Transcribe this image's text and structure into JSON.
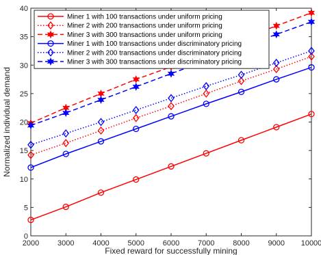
{
  "chart_data": {
    "type": "line",
    "title": "",
    "xlabel": "Fixed reward for successfully mining",
    "ylabel": "Normalized individual demand",
    "xlim": [
      2000,
      10000
    ],
    "ylim": [
      0,
      40
    ],
    "xticks": [
      2000,
      3000,
      4000,
      5000,
      6000,
      7000,
      8000,
      9000,
      10000
    ],
    "yticks": [
      0,
      5,
      10,
      15,
      20,
      25,
      30,
      35,
      40
    ],
    "grid": false,
    "legend_position": "top-left",
    "x": [
      2000,
      3000,
      4000,
      5000,
      6000,
      7000,
      8000,
      9000,
      10000
    ],
    "series": [
      {
        "name": "Miner 1 with 100 transactions under uniform pricing",
        "color": "#ff0000",
        "line_style": "solid",
        "marker": "circle",
        "values": [
          2.8,
          5.1,
          7.6,
          9.9,
          12.2,
          14.5,
          16.8,
          19.1,
          21.4
        ]
      },
      {
        "name": "Miner 2 with 200 transactions under uniform pricing",
        "color": "#ff0000",
        "line_style": "dotted",
        "marker": "diamond",
        "values": [
          14.2,
          16.3,
          18.5,
          20.7,
          22.8,
          25.0,
          27.2,
          29.3,
          31.5
        ]
      },
      {
        "name": "Miner 3 with 300 transactions under uniform pricing",
        "color": "#ff0000",
        "line_style": "dashed",
        "marker": "hexagram",
        "values": [
          19.8,
          22.5,
          25.0,
          27.5,
          29.7,
          32.2,
          34.6,
          36.9,
          39.2
        ]
      },
      {
        "name": "Miner 1 with 100 transactions under discriminatory pricing",
        "color": "#0000ff",
        "line_style": "solid",
        "marker": "circle",
        "values": [
          12.0,
          14.4,
          16.6,
          18.8,
          21.0,
          23.2,
          25.3,
          27.5,
          29.6
        ]
      },
      {
        "name": "Miner 2 with 200 transactions under discriminatory pricing",
        "color": "#0000ff",
        "line_style": "dotted",
        "marker": "diamond",
        "values": [
          16.0,
          18.0,
          20.0,
          22.1,
          24.2,
          26.3,
          28.3,
          30.4,
          32.5
        ]
      },
      {
        "name": "Miner 3 with 300 transactions under discriminatory pricing",
        "color": "#0000ff",
        "line_style": "dashed",
        "marker": "hexagram",
        "values": [
          19.4,
          21.6,
          23.9,
          26.2,
          28.5,
          30.8,
          33.1,
          35.4,
          37.6
        ]
      }
    ]
  }
}
